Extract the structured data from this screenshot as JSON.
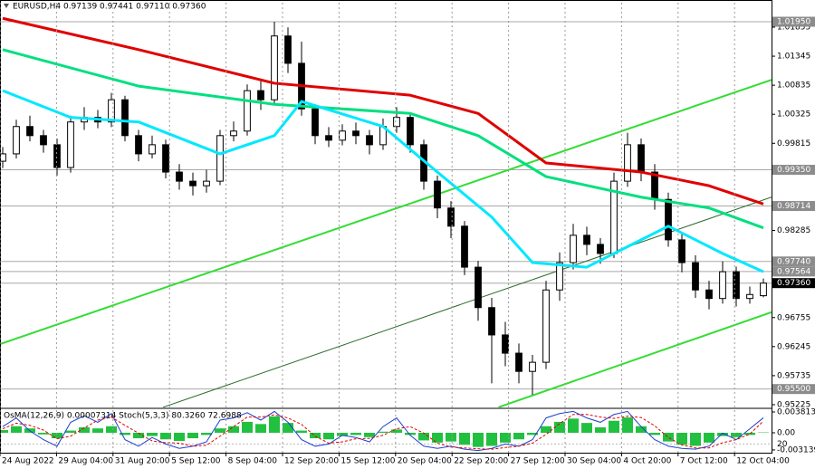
{
  "chart_data": [
    {
      "type": "candlestick",
      "title": "EURUSD,H4  0.97139 0.97441 0.97110 0.97360",
      "open": [
        0.995,
        0.9963,
        1.0011,
        0.9995,
        0.9979,
        0.9939,
        1.0019,
        1.0027,
        1.0019,
        1.0058,
        0.9995,
        0.9963,
        0.9979,
        0.9931,
        0.9915,
        0.9907,
        0.9915,
        0.9995,
        1.0003,
        1.0074,
        1.0058,
        1.017,
        1.0122,
        1.0042,
        0.9995,
        0.9987,
        1.0003,
        0.9995,
        0.9979,
        1.0011,
        1.0027,
        0.9979,
        0.9915,
        0.9868,
        0.9836,
        0.9764,
        0.9693,
        0.9645,
        0.9613,
        0.9581,
        0.9597,
        0.9724,
        0.9772,
        0.982,
        0.9804,
        0.9788,
        0.9915,
        0.9979,
        0.9931,
        0.9883,
        0.9812,
        0.9772,
        0.9724,
        0.9709,
        0.9756,
        0.9709,
        0.97139
      ],
      "high": [
        0.9975,
        1.0023,
        1.003,
        1.0005,
        0.999,
        1.003,
        1.0045,
        1.004,
        1.007,
        1.0065,
        1.0005,
        0.9995,
        0.9988,
        0.9945,
        0.993,
        0.9935,
        1.0005,
        1.002,
        1.0085,
        1.0095,
        1.0195,
        1.0185,
        1.016,
        1.005,
        1.001,
        1.0015,
        1.0018,
        1.0005,
        1.0025,
        1.0045,
        1.0035,
        0.9988,
        0.9925,
        0.988,
        0.9845,
        0.9775,
        0.971,
        0.9668,
        0.963,
        0.961,
        0.974,
        0.979,
        0.984,
        0.9835,
        0.9815,
        0.993,
        1.0,
        0.999,
        0.9945,
        0.9895,
        0.9825,
        0.9785,
        0.974,
        0.9774,
        0.9765,
        0.973,
        0.97441
      ],
      "low": [
        0.9938,
        0.9955,
        0.9985,
        0.9965,
        0.9925,
        0.993,
        1.0005,
        1.0008,
        1.001,
        0.9985,
        0.995,
        0.9955,
        0.992,
        0.99,
        0.989,
        0.9895,
        0.9908,
        0.9985,
        0.9995,
        1.004,
        1.005,
        1.0105,
        1.003,
        0.998,
        0.9975,
        0.9978,
        0.998,
        0.9962,
        0.997,
        1.0,
        0.9965,
        0.99,
        0.985,
        0.9815,
        0.975,
        0.967,
        0.956,
        0.959,
        0.956,
        0.954,
        0.9585,
        0.9705,
        0.976,
        0.9785,
        0.977,
        0.978,
        0.9905,
        0.9915,
        0.9865,
        0.98,
        0.9755,
        0.971,
        0.969,
        0.97,
        0.9695,
        0.97,
        0.9711
      ],
      "close": [
        0.9963,
        1.0011,
        0.9995,
        0.9979,
        0.9939,
        1.0019,
        1.0027,
        1.0019,
        1.0058,
        0.9995,
        0.9963,
        0.9979,
        0.9931,
        0.9915,
        0.9907,
        0.9915,
        0.9995,
        1.0003,
        1.0074,
        1.0058,
        1.017,
        1.0122,
        1.0042,
        0.9995,
        0.9987,
        1.0003,
        0.9995,
        0.9979,
        1.0011,
        1.0027,
        0.9979,
        0.9915,
        0.9868,
        0.9836,
        0.9764,
        0.9693,
        0.9645,
        0.9613,
        0.9581,
        0.9597,
        0.9724,
        0.9772,
        0.982,
        0.9804,
        0.9788,
        0.9915,
        0.9979,
        0.9931,
        0.9883,
        0.9812,
        0.9772,
        0.9724,
        0.9709,
        0.9756,
        0.9709,
        0.9716,
        0.9736
      ],
      "xlim": [
        -0.2,
        56.6
      ],
      "xticks": [
        {
          "value": -0.2,
          "label": "24 Aug 2022"
        },
        {
          "value": 3.96,
          "label": "29 Aug 04:00"
        },
        {
          "value": 8.12,
          "label": "31 Aug 20:00"
        },
        {
          "value": 12.28,
          "label": "5 Sep 12:00"
        },
        {
          "value": 16.44,
          "label": "8 Sep 04:00"
        },
        {
          "value": 20.6,
          "label": "12 Sep 20:00"
        },
        {
          "value": 24.76,
          "label": "15 Sep 12:00"
        },
        {
          "value": 28.92,
          "label": "20 Sep 04:00"
        },
        {
          "value": 33.08,
          "label": "22 Sep 20:00"
        },
        {
          "value": 37.24,
          "label": "27 Sep 12:00"
        },
        {
          "value": 41.4,
          "label": "30 Sep 04:00"
        },
        {
          "value": 45.56,
          "label": "4 Oct 20:00"
        },
        {
          "value": 49.72,
          "label": "7 Oct 12:00"
        },
        {
          "value": 53.88,
          "label": "12 Oct 04:00"
        }
      ],
      "ylim": [
        0.95177,
        1.02284
      ],
      "yticks": [
        1.01855,
        1.01345,
        1.00835,
        1.00325,
        0.99815,
        0.98285,
        0.96755,
        0.96245,
        0.95735,
        0.95225
      ],
      "grid": true,
      "moving_averages": [
        {
          "color": "#e00000",
          "x": [
            0,
            10,
            20,
            30,
            35,
            40,
            47,
            52,
            56
          ],
          "values": [
            1.0201,
            1.0146,
            1.0087,
            1.0066,
            1.0034,
            0.9947,
            0.9931,
            0.9907,
            0.9875
          ]
        },
        {
          "color": "#00e080",
          "x": [
            0,
            10,
            20,
            30,
            35,
            40,
            47,
            52,
            56
          ],
          "values": [
            1.0146,
            1.0082,
            1.005,
            1.0034,
            0.9995,
            0.9923,
            0.9887,
            0.9868,
            0.9833
          ]
        },
        {
          "color": "#00e8ff",
          "x": [
            0,
            5,
            10,
            16,
            20,
            22,
            28,
            32,
            36,
            39,
            43,
            47,
            49,
            53,
            56
          ],
          "values": [
            1.0074,
            1.0027,
            1.0019,
            0.9963,
            0.9995,
            1.0055,
            1.0011,
            0.9931,
            0.9852,
            0.9772,
            0.9764,
            0.9812,
            0.9836,
            0.9788,
            0.9756
          ]
        }
      ],
      "trendlines": [
        {
          "color": "#33dd33",
          "width": 2,
          "x": [
            -0.2,
            56.6
          ],
          "y": [
            0.9629,
            1.0093
          ]
        },
        {
          "color": "#33dd33",
          "width": 2,
          "x": [
            36.5,
            56.6
          ],
          "y": [
            0.9518,
            0.9685
          ]
        },
        {
          "color": "#2a6a2a",
          "width": 1,
          "x": [
            11.8,
            56.6
          ],
          "y": [
            0.9518,
            0.9887
          ]
        }
      ],
      "levels": [
        {
          "value": 1.0195,
          "label": "1.01950"
        },
        {
          "value": 0.9935,
          "label": "0.99350"
        },
        {
          "value": 0.98714,
          "label": "0.98714"
        },
        {
          "value": 0.9774,
          "label": "0.97740"
        },
        {
          "value": 0.97564,
          "label": "0.97564"
        },
        {
          "value": 0.9736,
          "label": "0.97360"
        },
        {
          "value": 0.955,
          "label": "0.95500"
        }
      ],
      "level_colors": [
        "#8c8c8c",
        "#8c8c8c",
        "#8c8c8c",
        "#8c8c8c",
        "#8c8c8c",
        "#000000",
        "#8c8c8c"
      ]
    },
    {
      "type": "oscillator",
      "title": "OsMA(12,26,9) 0.00007314 Stoch(5,3,3) 80.3260 72.6988",
      "values": [
        0.0005,
        0.0012,
        0.0008,
        -0.0003,
        -0.001,
        0.0004,
        0.001,
        0.0008,
        0.0012,
        -0.0004,
        -0.001,
        -0.0006,
        -0.0012,
        -0.0015,
        -0.001,
        -0.0004,
        0.0008,
        0.0012,
        0.002,
        0.0016,
        0.003,
        0.0018,
        0.0004,
        -0.001,
        -0.0012,
        -0.0006,
        -0.0004,
        -0.0008,
        0.0002,
        0.0006,
        -0.0004,
        -0.0014,
        -0.0018,
        -0.0016,
        -0.0022,
        -0.0026,
        -0.0024,
        -0.0018,
        -0.0012,
        -0.0004,
        0.0012,
        0.002,
        0.0026,
        0.0018,
        0.001,
        0.0022,
        0.0028,
        0.0012,
        -0.0004,
        -0.0016,
        -0.0022,
        -0.0024,
        -0.0018,
        -0.0006,
        -0.0008,
        -0.0004,
        7.314e-05
      ],
      "color": "#22c040",
      "ylim": [
        -0.00365,
        0.00431
      ],
      "yticks": [
        0.0038137,
        {
          "value": 0,
          "label": "0.00"
        },
        -0.003139
      ],
      "stoch": {
        "ylim": [
          0,
          100
        ],
        "yticks": [
          20
        ],
        "main": [
          60,
          80,
          50,
          30,
          15,
          70,
          85,
          70,
          90,
          30,
          15,
          35,
          20,
          10,
          15,
          25,
          75,
          80,
          92,
          75,
          95,
          70,
          30,
          15,
          20,
          40,
          35,
          25,
          60,
          80,
          40,
          15,
          10,
          15,
          8,
          5,
          10,
          20,
          15,
          30,
          80,
          90,
          95,
          80,
          70,
          88,
          95,
          60,
          30,
          15,
          10,
          8,
          15,
          45,
          30,
          55,
          80.326
        ],
        "signal": [
          55,
          68,
          63,
          52,
          32,
          38,
          57,
          75,
          82,
          63,
          45,
          27,
          23,
          22,
          15,
          17,
          38,
          60,
          82,
          82,
          87,
          80,
          65,
          38,
          22,
          25,
          32,
          33,
          40,
          55,
          60,
          45,
          22,
          13,
          11,
          9,
          8,
          12,
          15,
          22,
          42,
          67,
          88,
          88,
          82,
          79,
          84,
          81,
          62,
          35,
          18,
          11,
          11,
          23,
          30,
          43,
          72.6988
        ],
        "main_color": "#1f3fd0",
        "signal_color": "#e00000"
      }
    }
  ]
}
